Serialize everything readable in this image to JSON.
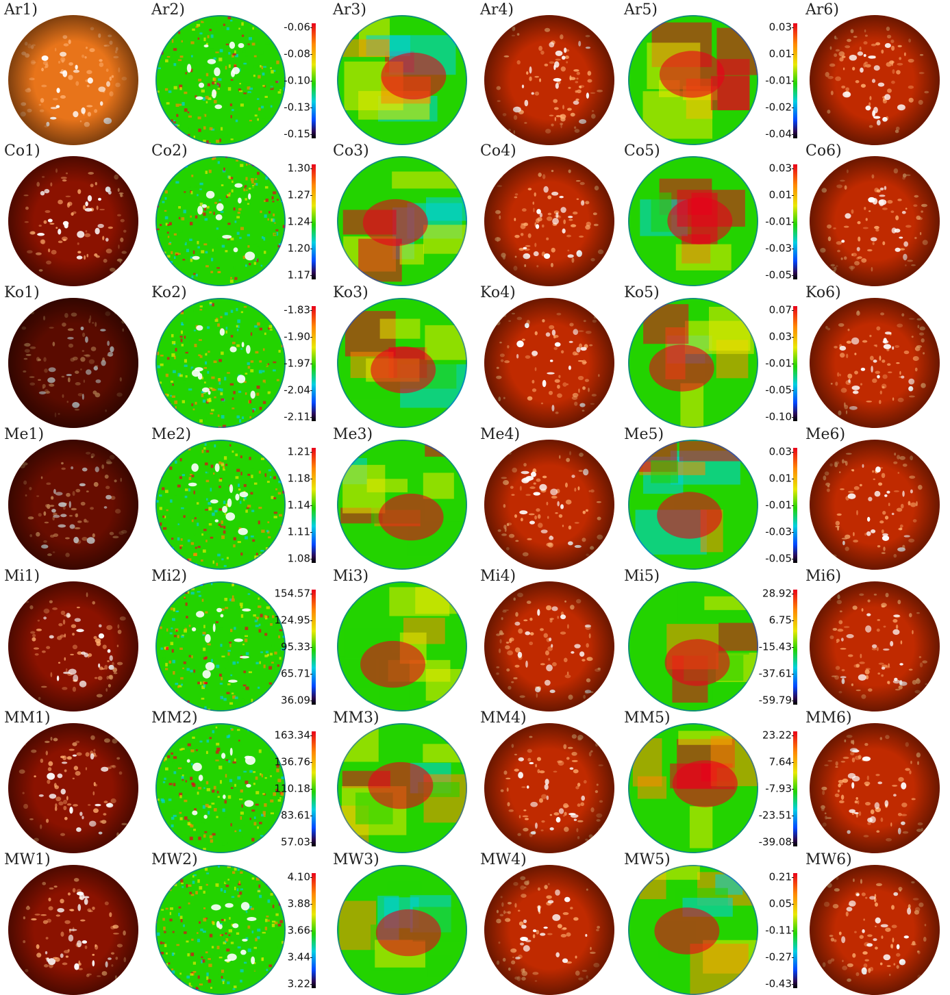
{
  "figure": {
    "rows": [
      {
        "id": "Ar",
        "labels": [
          "Ar1)",
          "Ar2)",
          "Ar3)",
          "Ar4)",
          "Ar5)",
          "Ar6)"
        ],
        "colorbar_a": [
          "-0.06",
          "-0.08",
          "-0.10",
          "-0.13",
          "-0.15"
        ],
        "colorbar_b": [
          "0.03",
          "0.01",
          "-0.01",
          "-0.02",
          "-0.04"
        ]
      },
      {
        "id": "Co",
        "labels": [
          "Co1)",
          "Co2)",
          "Co3)",
          "Co4)",
          "Co5)",
          "Co6)"
        ],
        "colorbar_a": [
          "1.30",
          "1.27",
          "1.24",
          "1.20",
          "1.17"
        ],
        "colorbar_b": [
          "0.03",
          "0.01",
          "-0.01",
          "-0.03",
          "-0.05"
        ]
      },
      {
        "id": "Ko",
        "labels": [
          "Ko1)",
          "Ko2)",
          "Ko3)",
          "Ko4)",
          "Ko5)",
          "Ko6)"
        ],
        "colorbar_a": [
          "-1.83",
          "-1.90",
          "-1.97",
          "-2.04",
          "-2.11"
        ],
        "colorbar_b": [
          "0.07",
          "0.03",
          "-0.01",
          "-0.05",
          "-0.10"
        ]
      },
      {
        "id": "Me",
        "labels": [
          "Me1)",
          "Me2)",
          "Me3)",
          "Me4)",
          "Me5)",
          "Me6)"
        ],
        "colorbar_a": [
          "1.21",
          "1.18",
          "1.14",
          "1.11",
          "1.08"
        ],
        "colorbar_b": [
          "0.03",
          "0.01",
          "-0.01",
          "-0.03",
          "-0.05"
        ]
      },
      {
        "id": "Mi",
        "labels": [
          "Mi1)",
          "Mi2)",
          "Mi3)",
          "Mi4)",
          "Mi5)",
          "Mi6)"
        ],
        "colorbar_a": [
          "154.57",
          "124.95",
          "95.33",
          "65.71",
          "36.09"
        ],
        "colorbar_b": [
          "28.92",
          "6.75",
          "-15.43",
          "-37.61",
          "-59.79"
        ]
      },
      {
        "id": "MM",
        "labels": [
          "MM1)",
          "MM2)",
          "MM3)",
          "MM4)",
          "MM5)",
          "MM6)"
        ],
        "colorbar_a": [
          "163.34",
          "136.76",
          "110.18",
          "83.61",
          "57.03"
        ],
        "colorbar_b": [
          "23.22",
          "7.64",
          "-7.93",
          "-23.51",
          "-39.08"
        ]
      },
      {
        "id": "MW",
        "labels": [
          "MW1)",
          "MW2)",
          "MW3)",
          "MW4)",
          "MW5)",
          "MW6)"
        ],
        "colorbar_a": [
          "4.10",
          "3.88",
          "3.66",
          "3.44",
          "3.22"
        ],
        "colorbar_b": [
          "0.21",
          "0.05",
          "-0.11",
          "-0.27",
          "-0.43"
        ]
      }
    ],
    "panel_styles": {
      "col1": "orange-red intensity image",
      "col2": "jet-colormap map",
      "col3": "smooth jet-colormap map",
      "col4": "red intensity image",
      "col5": "smooth jet-colormap map",
      "col6": "red intensity image"
    },
    "colors": {
      "red_dark": "#8b1200",
      "red_mid": "#c02a00",
      "orange": "#e8741a",
      "jet_red": "#e8001b",
      "jet_yellow": "#e8e800",
      "jet_green": "#23d300",
      "jet_cyan": "#00cfe0",
      "jet_blue": "#0047ff"
    }
  }
}
